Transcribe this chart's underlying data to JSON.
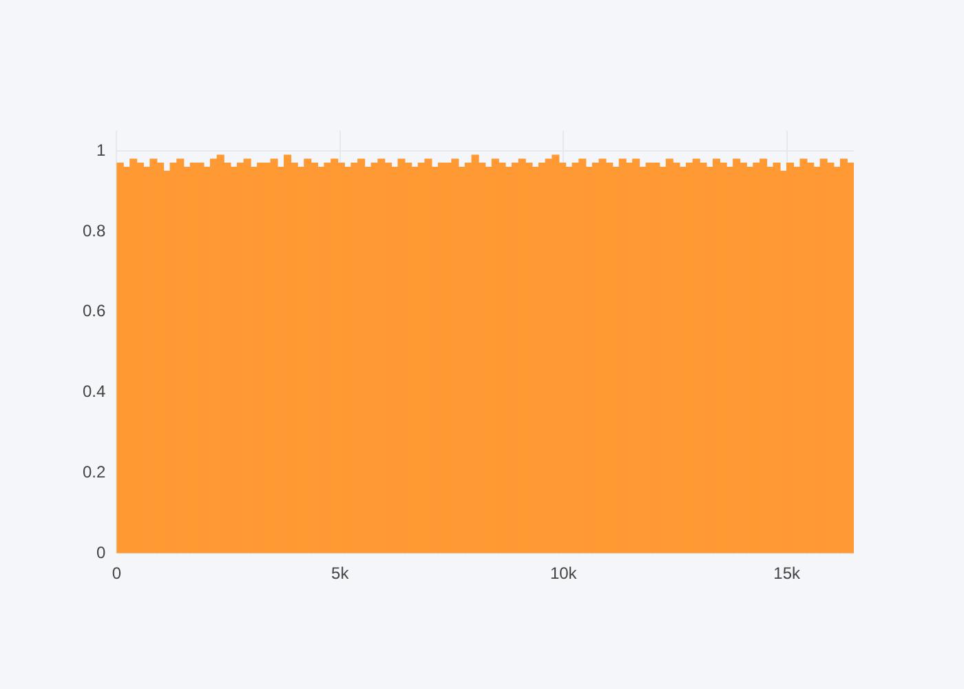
{
  "chart_data": {
    "type": "bar",
    "color": "#ff9933",
    "x": [
      75,
      225,
      375,
      525,
      675,
      825,
      975,
      1125,
      1275,
      1425,
      1575,
      1725,
      1875,
      2025,
      2175,
      2325,
      2475,
      2625,
      2775,
      2925,
      3075,
      3225,
      3375,
      3525,
      3675,
      3825,
      3975,
      4125,
      4275,
      4425,
      4575,
      4725,
      4875,
      5025,
      5175,
      5325,
      5475,
      5625,
      5775,
      5925,
      6075,
      6225,
      6375,
      6525,
      6675,
      6825,
      6975,
      7125,
      7275,
      7425,
      7575,
      7725,
      7875,
      8025,
      8175,
      8325,
      8475,
      8625,
      8775,
      8925,
      9075,
      9225,
      9375,
      9525,
      9675,
      9825,
      9975,
      10125,
      10275,
      10425,
      10575,
      10725,
      10875,
      11025,
      11175,
      11325,
      11475,
      11625,
      11775,
      11925,
      12075,
      12225,
      12375,
      12525,
      12675,
      12825,
      12975,
      13125,
      13275,
      13425,
      13575,
      13725,
      13875,
      14025,
      14175,
      14325,
      14475,
      14625,
      14775,
      14925,
      15075,
      15225,
      15375,
      15525,
      15675,
      15825,
      15975,
      16125,
      16275,
      16425
    ],
    "values": [
      0.97,
      0.96,
      0.98,
      0.97,
      0.96,
      0.98,
      0.97,
      0.95,
      0.97,
      0.98,
      0.96,
      0.97,
      0.97,
      0.96,
      0.98,
      0.99,
      0.97,
      0.96,
      0.97,
      0.98,
      0.96,
      0.97,
      0.97,
      0.98,
      0.96,
      0.99,
      0.97,
      0.96,
      0.98,
      0.97,
      0.96,
      0.97,
      0.98,
      0.97,
      0.96,
      0.97,
      0.98,
      0.96,
      0.97,
      0.98,
      0.97,
      0.96,
      0.98,
      0.97,
      0.96,
      0.97,
      0.98,
      0.96,
      0.97,
      0.97,
      0.98,
      0.96,
      0.97,
      0.99,
      0.97,
      0.96,
      0.98,
      0.97,
      0.96,
      0.97,
      0.98,
      0.97,
      0.96,
      0.97,
      0.98,
      0.99,
      0.97,
      0.96,
      0.97,
      0.98,
      0.96,
      0.97,
      0.98,
      0.97,
      0.96,
      0.98,
      0.97,
      0.98,
      0.96,
      0.97,
      0.97,
      0.96,
      0.98,
      0.97,
      0.96,
      0.97,
      0.98,
      0.97,
      0.96,
      0.98,
      0.97,
      0.96,
      0.98,
      0.97,
      0.96,
      0.97,
      0.98,
      0.96,
      0.97,
      0.95,
      0.97,
      0.96,
      0.98,
      0.97,
      0.96,
      0.98,
      0.97,
      0.96,
      0.98,
      0.97
    ],
    "xlim": [
      0,
      16500
    ],
    "xticks": [
      0,
      {
        "value": 5000,
        "label": "5k"
      },
      {
        "value": 10000,
        "label": "10k"
      },
      {
        "value": 15000,
        "label": "15k"
      }
    ],
    "ylim": [
      0,
      1.05
    ],
    "yticks": [
      0,
      0.2,
      0.4,
      0.6,
      0.8,
      1
    ],
    "grid": true
  }
}
